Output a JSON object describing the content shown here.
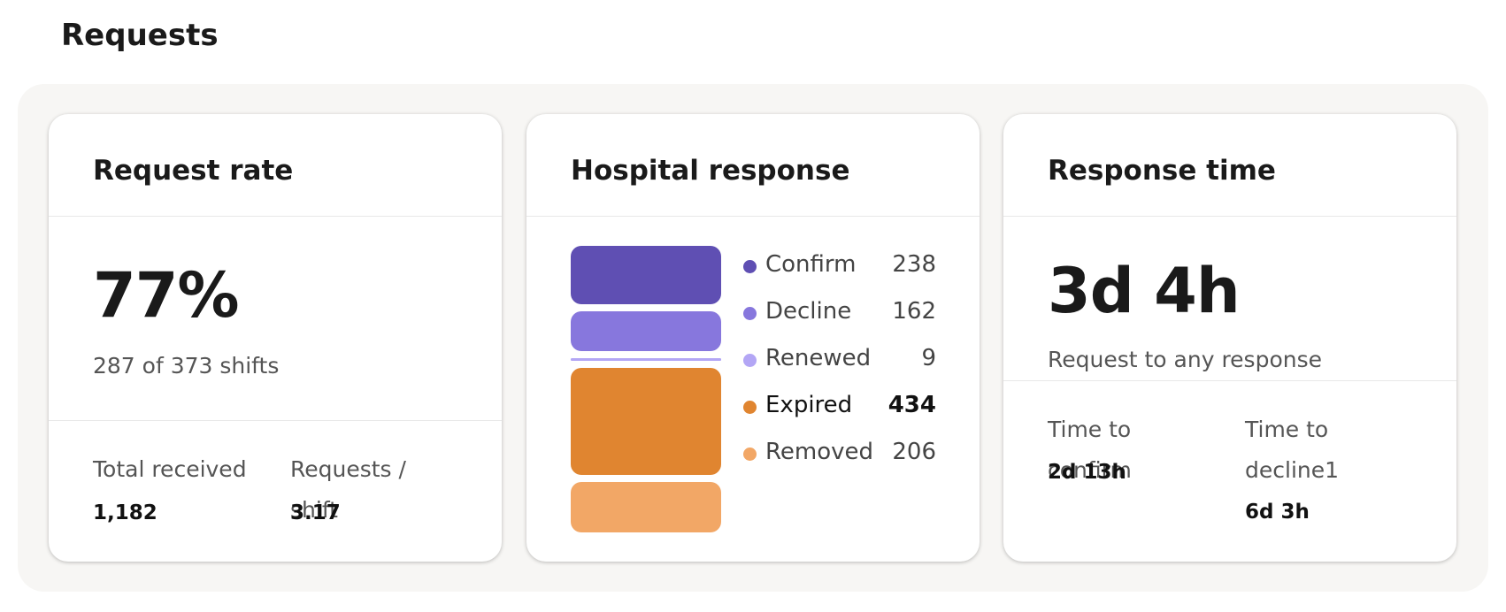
{
  "header": {
    "title": "Requests"
  },
  "cards": [
    {
      "title": "Request rate",
      "value": "77%",
      "subtitle": "287 of 373 shifts",
      "stats": [
        {
          "label": "Total received",
          "value": "1,182"
        },
        {
          "label": "Requests / shift",
          "value": "3.17"
        }
      ]
    },
    {
      "title": "Hospital response",
      "legend": [
        {
          "name": "Confirm",
          "value": 238,
          "color": "#5f4fb3"
        },
        {
          "name": "Decline",
          "value": 162,
          "color": "#8777dd"
        },
        {
          "name": "Renewed",
          "value": 9,
          "color": "#b3a6f5"
        },
        {
          "name": "Expired",
          "value": 434,
          "color": "#e08530",
          "bold": true
        },
        {
          "name": "Removed",
          "value": 206,
          "color": "#f2a766"
        }
      ]
    },
    {
      "title": "Response time",
      "value": "3d 4h",
      "subtitle": "Request to any response",
      "stats": [
        {
          "label": "Time to confirm",
          "value": "2d 13h"
        },
        {
          "label": "Time to decline1",
          "value": "6d 3h"
        }
      ]
    }
  ]
}
